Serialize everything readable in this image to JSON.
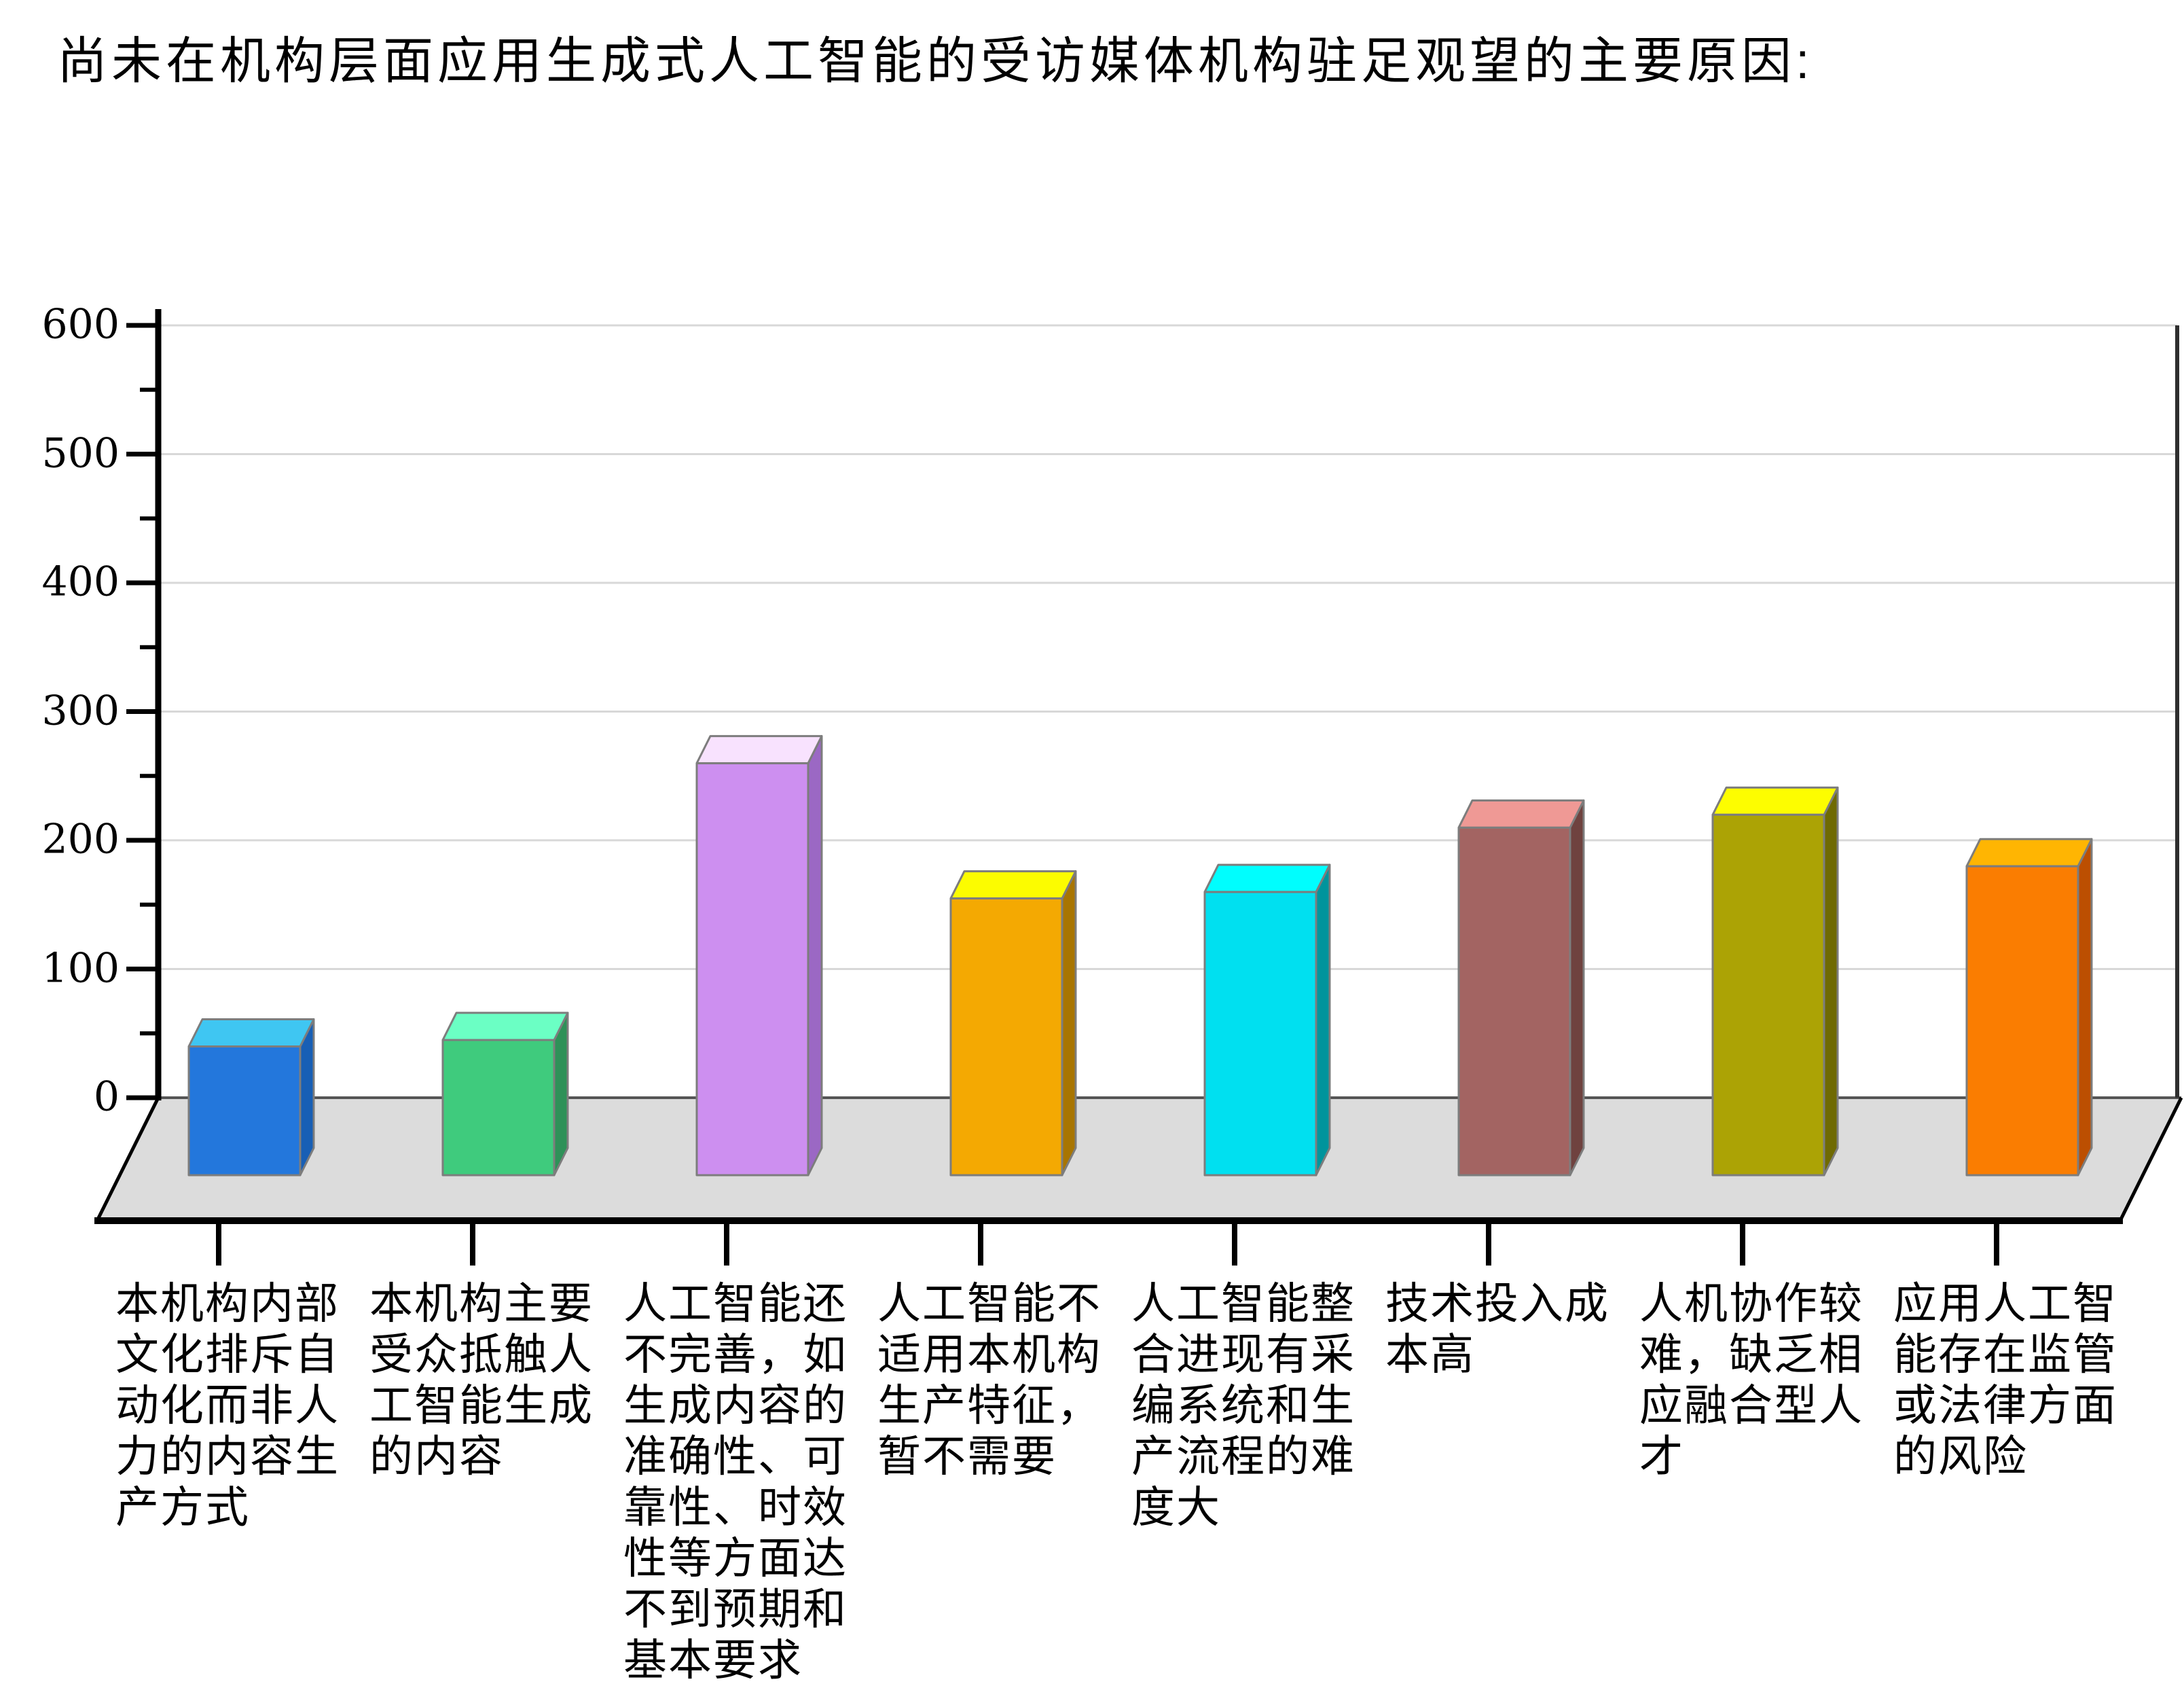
{
  "title": "尚未在机构层面应用生成式人工智能的受访媒体机构驻足观望的主要原因:",
  "chart_data": {
    "type": "bar",
    "style": "3d-column",
    "title": "尚未在机构层面应用生成式人工智能的受访媒体机构驻足观望的主要原因:",
    "categories": [
      "本机构内部文化排斥自动化而非人力的内容生产方式",
      "本机构主要受众抵触人工智能生成的内容",
      "人工智能还不完善，如生成内容的准确性、可靠性、时效性等方面达不到预期和基本要求",
      "人工智能不适用本机构生产特征，暂不需要",
      "人工智能整合进现有采编系统和生产流程的难度大",
      "技术投入成本高",
      "人机协作较难，缺乏相应融合型人才",
      "应用人工智能存在监管或法律方面的风险"
    ],
    "values": [
      100,
      105,
      320,
      215,
      220,
      270,
      280,
      240
    ],
    "xlabel": "",
    "ylabel": "",
    "ylim": [
      0,
      600
    ],
    "y_tick_interval": 100,
    "y_minor_tick_interval": 50,
    "y_ticks": [
      "0",
      "100",
      "200",
      "300",
      "400",
      "500",
      "600"
    ],
    "grid": true,
    "legend": false,
    "floor_color": "#DCDCDC",
    "gridline_color": "#D8D8D8",
    "bar_colors": [
      {
        "name": "blue",
        "front": "#2377DC",
        "top": "#3FC6F2",
        "side": "#185FB5"
      },
      {
        "name": "green",
        "front": "#3FCB7D",
        "top": "#6BFFC4",
        "side": "#2E9158"
      },
      {
        "name": "violet",
        "front": "#CD8FF0",
        "top": "#F8E2FE",
        "side": "#9B68C4"
      },
      {
        "name": "gold",
        "front": "#F4A902",
        "top": "#FCFC00",
        "side": "#A87501"
      },
      {
        "name": "cyan",
        "front": "#00E0F0",
        "top": "#00FEFE",
        "side": "#00949C"
      },
      {
        "name": "brown",
        "front": "#A36462",
        "top": "#EF9995",
        "side": "#6F423F"
      },
      {
        "name": "olive",
        "front": "#ACA305",
        "top": "#FDFD00",
        "side": "#6F6A02"
      },
      {
        "name": "orange",
        "front": "#FA7D01",
        "top": "#FFB502",
        "side": "#BC4F01"
      }
    ]
  },
  "x_labels_lines": [
    [
      "本机构内部",
      "文化排斥自",
      "动化而非人",
      "力的内容生",
      "产方式"
    ],
    [
      "本机构主要",
      "受众抵触人",
      "工智能生成",
      "的内容"
    ],
    [
      "人工智能还",
      "不完善，如",
      "生成内容的",
      "准确性、可",
      "靠性、时效",
      "性等方面达",
      "不到预期和",
      "基本要求"
    ],
    [
      "人工智能不",
      "适用本机构",
      "生产特征，",
      "暂不需要"
    ],
    [
      "人工智能整",
      "合进现有采",
      "编系统和生",
      "产流程的难",
      "度大"
    ],
    [
      "技术投入成",
      "本高"
    ],
    [
      "人机协作较",
      "难，缺乏相",
      "应融合型人",
      "才"
    ],
    [
      "应用人工智",
      "能存在监管",
      "或法律方面",
      "的风险"
    ]
  ]
}
